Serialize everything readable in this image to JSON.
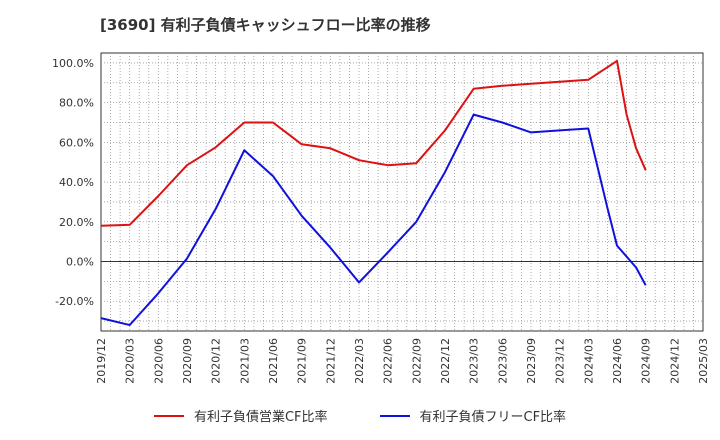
{
  "chart_data": {
    "type": "line",
    "title": "[3690]  有利子負債キャッシュフロー比率の推移",
    "x_ticks": [
      "2019/12",
      "2020/03",
      "2020/06",
      "2020/09",
      "2020/12",
      "2021/03",
      "2021/06",
      "2021/09",
      "2021/12",
      "2022/03",
      "2022/06",
      "2022/09",
      "2022/12",
      "2023/03",
      "2023/06",
      "2023/09",
      "2023/12",
      "2024/03",
      "2024/06",
      "2024/09",
      "2024/12",
      "2025/03"
    ],
    "y_ticks": [
      "-20.0%",
      "0.0%",
      "20.0%",
      "40.0%",
      "60.0%",
      "80.0%",
      "100.0%"
    ],
    "ylim": [
      -35,
      105
    ],
    "grid": true,
    "legend_position": "bottom",
    "series": [
      {
        "name": "有利子負債営業CF比率",
        "color": "#dd1111",
        "points": [
          [
            "2019/12",
            18
          ],
          [
            "2020/03",
            18.5
          ],
          [
            "2020/06",
            33
          ],
          [
            "2020/09",
            48.5
          ],
          [
            "2020/12",
            57.5
          ],
          [
            "2021/03",
            70
          ],
          [
            "2021/06",
            70
          ],
          [
            "2021/09",
            59
          ],
          [
            "2021/12",
            57
          ],
          [
            "2022/03",
            51
          ],
          [
            "2022/06",
            48.5
          ],
          [
            "2022/09",
            49.5
          ],
          [
            "2022/12",
            66
          ],
          [
            "2023/03",
            87
          ],
          [
            "2023/06",
            88.5
          ],
          [
            "2023/09",
            89.5
          ],
          [
            "2023/12",
            90.5
          ],
          [
            "2024/03",
            91.5
          ],
          [
            "2024/06",
            101
          ],
          [
            "2024/07",
            74
          ],
          [
            "2024/08",
            57
          ],
          [
            "2024/09",
            46
          ]
        ]
      },
      {
        "name": "有利子負債フリーCF比率",
        "color": "#1111dd",
        "points": [
          [
            "2019/12",
            -28.5
          ],
          [
            "2020/03",
            -32
          ],
          [
            "2020/06",
            -16
          ],
          [
            "2020/09",
            1.5
          ],
          [
            "2020/12",
            26.5
          ],
          [
            "2021/03",
            56
          ],
          [
            "2021/06",
            43
          ],
          [
            "2021/09",
            23
          ],
          [
            "2021/12",
            7
          ],
          [
            "2022/03",
            -10.5
          ],
          [
            "2022/06",
            4.5
          ],
          [
            "2022/09",
            20
          ],
          [
            "2022/12",
            45
          ],
          [
            "2023/03",
            74
          ],
          [
            "2023/06",
            70
          ],
          [
            "2023/09",
            65
          ],
          [
            "2023/12",
            66
          ],
          [
            "2024/03",
            67
          ],
          [
            "2024/05",
            27
          ],
          [
            "2024/06",
            8
          ],
          [
            "2024/08",
            -3
          ],
          [
            "2024/09",
            -12
          ]
        ]
      }
    ]
  }
}
